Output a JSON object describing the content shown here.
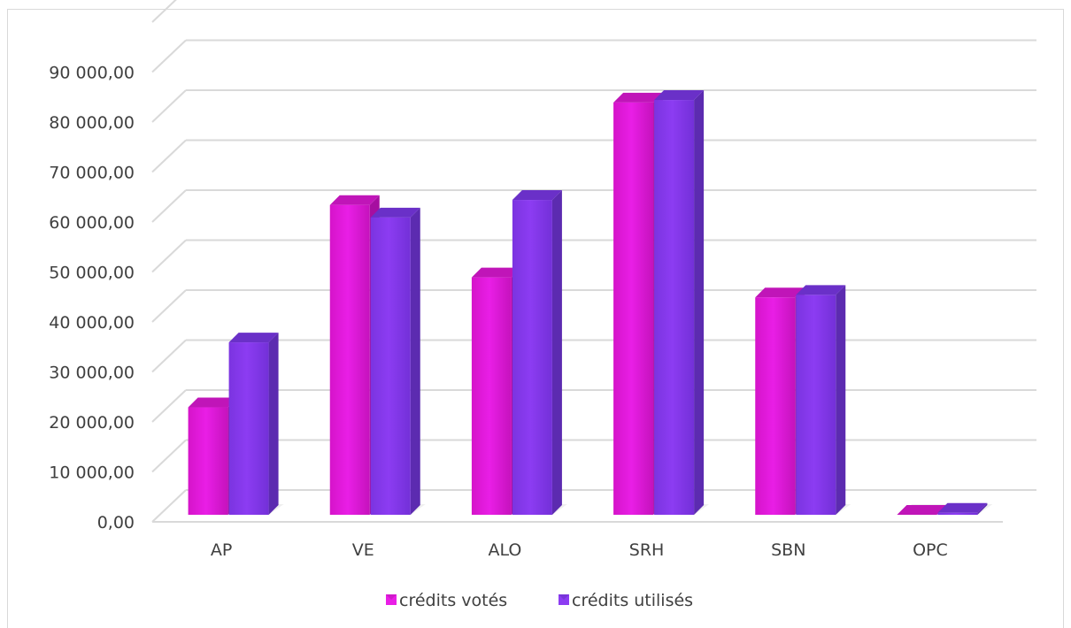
{
  "chart_data": {
    "type": "bar",
    "categories": [
      "AP",
      "VE",
      "ALO",
      "SRH",
      "SBN",
      "OPC"
    ],
    "series": [
      {
        "name": "crédits votés",
        "values": [
          21500,
          62000,
          47500,
          82500,
          43500,
          0
        ],
        "color": "#e91ee6"
      },
      {
        "name": "crédits utilisés",
        "values": [
          34500,
          59500,
          63000,
          83000,
          44000,
          400
        ],
        "color": "#8c3cf2"
      }
    ],
    "yticks": [
      "0,00",
      "10 000,00",
      "20 000,00",
      "30 000,00",
      "40 000,00",
      "50 000,00",
      "60 000,00",
      "70 000,00",
      "80 000,00",
      "90 000,00"
    ],
    "ylim": [
      0,
      100000
    ],
    "grid": true,
    "legend": "bottom",
    "style": "3d-clustered-column"
  }
}
